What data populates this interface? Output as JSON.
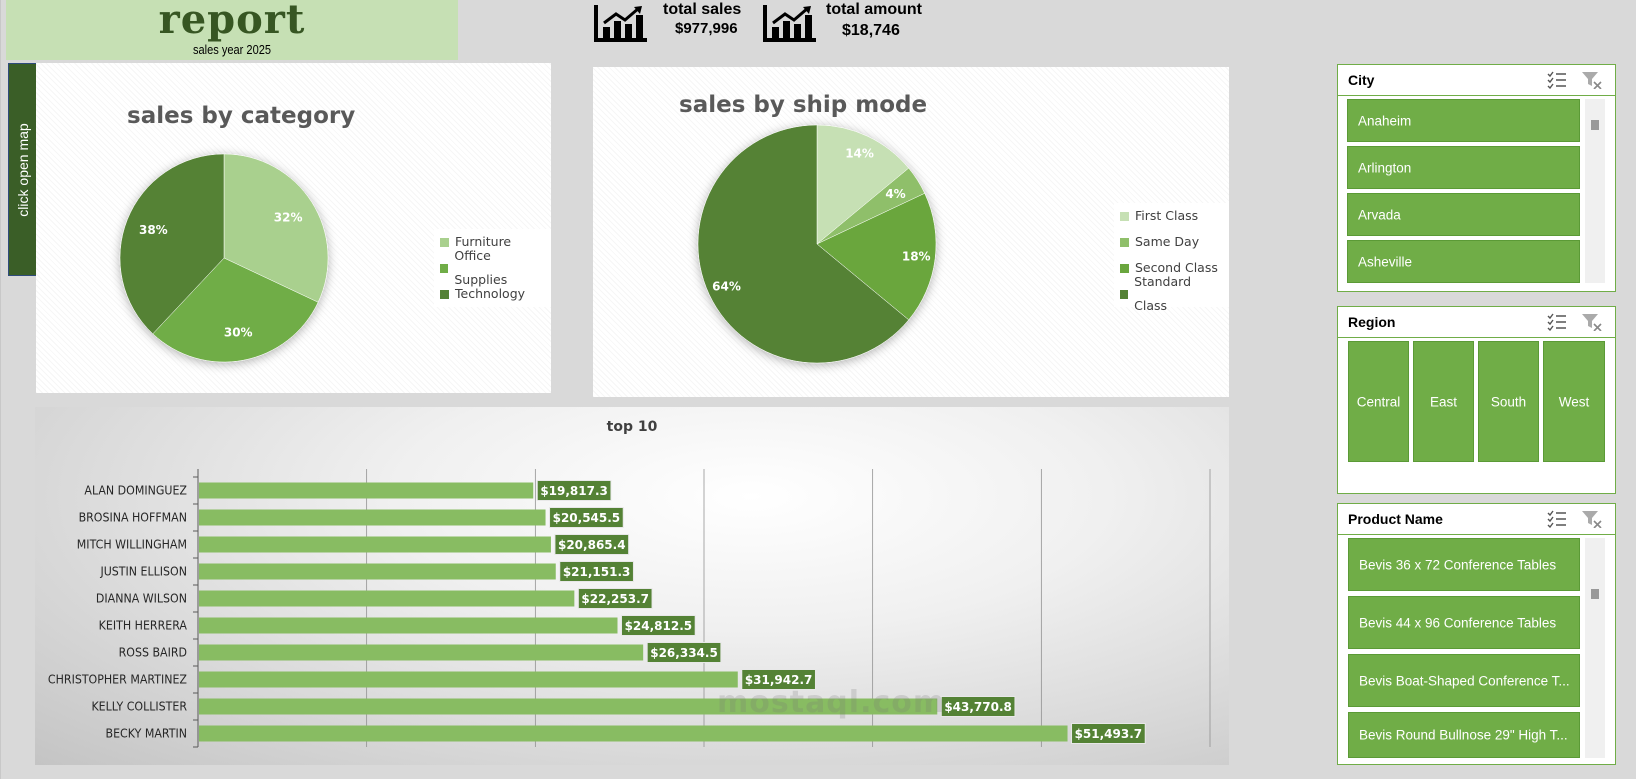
{
  "header": {
    "title": "report",
    "subtitle": "sales year 2025"
  },
  "kpis": [
    {
      "label": "total sales",
      "value": "$977,996",
      "icon": "bar-chart-icon"
    },
    {
      "label": "total amount",
      "value": "$18,746",
      "icon": "bar-chart-icon"
    }
  ],
  "map_button": {
    "label": "click open map"
  },
  "slicers": {
    "city": {
      "title": "City",
      "items": [
        "Anaheim",
        "Arlington",
        "Arvada",
        "Asheville"
      ]
    },
    "region": {
      "title": "Region",
      "items": [
        "Central",
        "East",
        "South",
        "West"
      ]
    },
    "product": {
      "title": "Product Name",
      "items": [
        "Bevis 36 x 72 Conference Tables",
        "Bevis 44 x 96 Conference Tables",
        "Bevis Boat-Shaped Conference T...",
        "Bevis Round Bullnose 29\" High T..."
      ]
    }
  },
  "watermark": "mostaql.com",
  "colors": {
    "accent": "#70ad47",
    "dark_green": "#375623",
    "light_green": "#c6e0b4"
  },
  "chart_data": [
    {
      "type": "pie",
      "title": "sales by category",
      "categories": [
        "Furniture",
        "Office Supplies",
        "Technology"
      ],
      "values": [
        32,
        30,
        38
      ],
      "labels": [
        "32%",
        "30%",
        "38%"
      ],
      "colors": [
        "#a9d08e",
        "#70ad47",
        "#548235"
      ],
      "legend": "right"
    },
    {
      "type": "pie",
      "title": "sales by ship mode",
      "categories": [
        "First Class",
        "Same Day",
        "Second Class",
        "Standard Class"
      ],
      "values": [
        14,
        4,
        18,
        64
      ],
      "labels": [
        "14%",
        "4%",
        "18%",
        "64%"
      ],
      "colors": [
        "#c6e0b4",
        "#8fbf6a",
        "#6aa63e",
        "#548235"
      ],
      "legend": "right"
    },
    {
      "type": "bar",
      "orientation": "horizontal",
      "title": "top 10",
      "categories": [
        "ALAN DOMINGUEZ",
        "BROSINA HOFFMAN",
        "MITCH WILLINGHAM",
        "JUSTIN ELLISON",
        "DIANNA WILSON",
        "KEITH HERRERA",
        "ROSS BAIRD",
        "CHRISTOPHER MARTINEZ",
        "KELLY COLLISTER",
        "BECKY MARTIN"
      ],
      "values": [
        19817.3,
        20545.5,
        20865.4,
        21151.3,
        22253.7,
        24812.5,
        26334.5,
        31942.7,
        43770.8,
        51493.7
      ],
      "labels": [
        "$19,817.3",
        "$20,545.5",
        "$20,865.4",
        "$21,151.3",
        "$22,253.7",
        "$24,812.5",
        "$26,334.5",
        "$31,942.7",
        "$43,770.8",
        "$51,493.7"
      ],
      "xlim": [
        0,
        60000
      ],
      "grid": true,
      "bar_color": "#88bc62",
      "label_color": "#548235"
    }
  ]
}
